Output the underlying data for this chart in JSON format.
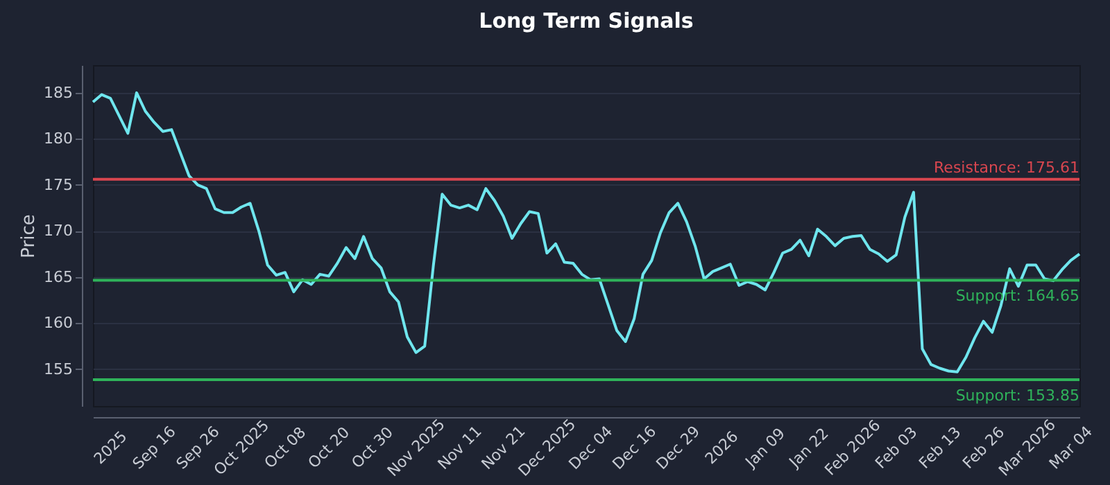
{
  "chart_data": {
    "type": "line",
    "title": "Long Term Signals",
    "ylabel": "Price",
    "categories": [
      null,
      null,
      "2025",
      null,
      null,
      null,
      null,
      "Sep 16",
      null,
      null,
      null,
      null,
      "Sep 26",
      null,
      null,
      null,
      null,
      "Oct 2025",
      null,
      null,
      null,
      null,
      "Oct 08",
      null,
      null,
      null,
      null,
      "Oct 20",
      null,
      null,
      null,
      null,
      "Oct 30",
      null,
      null,
      null,
      null,
      "Nov 2025",
      null,
      null,
      null,
      null,
      "Nov 11",
      null,
      null,
      null,
      null,
      "Nov 21",
      null,
      null,
      null,
      null,
      "Dec 2025",
      null,
      null,
      null,
      null,
      "Dec 04",
      null,
      null,
      null,
      null,
      "Dec 16",
      null,
      null,
      null,
      null,
      "Dec 29",
      null,
      null,
      null,
      null,
      "2026",
      null,
      null,
      null,
      null,
      "Jan 09",
      null,
      null,
      null,
      null,
      "Jan 22",
      null,
      null,
      null,
      null,
      "Feb 2026",
      null,
      null,
      null,
      null,
      "Feb 03",
      null,
      null,
      null,
      null,
      "Feb 13",
      null,
      null,
      null,
      null,
      "Feb 26",
      null,
      null,
      null,
      null,
      "Mar 2026",
      null,
      null,
      null,
      null,
      "Mar 04",
      null
    ],
    "series": [
      {
        "color": "#6fe6ee",
        "values": [
          184.0,
          184.8,
          184.4,
          182.5,
          180.6,
          185.0,
          183.0,
          181.8,
          180.8,
          181.0,
          178.5,
          176.0,
          175.0,
          174.6,
          172.4,
          172.0,
          172.0,
          172.6,
          173.0,
          170.0,
          166.3,
          165.2,
          165.5,
          163.4,
          164.7,
          164.2,
          165.3,
          165.1,
          166.5,
          168.2,
          167.0,
          169.4,
          167.0,
          166.0,
          163.4,
          162.3,
          158.5,
          156.8,
          157.5,
          166.3,
          174.0,
          172.8,
          172.5,
          172.8,
          172.3,
          174.6,
          173.3,
          171.6,
          169.2,
          170.8,
          172.1,
          171.9,
          167.6,
          168.6,
          166.6,
          166.5,
          165.3,
          164.7,
          164.8,
          162.0,
          159.2,
          158.0,
          160.5,
          165.3,
          166.8,
          169.8,
          172.0,
          173.0,
          171.0,
          168.3,
          164.8,
          165.6,
          166.0,
          166.4,
          164.1,
          164.5,
          164.2,
          163.6,
          165.5,
          167.6,
          168.0,
          169.0,
          167.3,
          170.2,
          169.4,
          168.4,
          169.2,
          169.4,
          169.5,
          168.0,
          167.5,
          166.7,
          167.4,
          171.5,
          174.2,
          157.2,
          155.5,
          155.1,
          154.8,
          154.7,
          156.3,
          158.4,
          160.2,
          159.0,
          161.9,
          165.9,
          164.0,
          166.3,
          166.3,
          164.8,
          164.6,
          165.8,
          166.8,
          167.5
        ]
      }
    ],
    "ylim": [
      151,
      188
    ],
    "yticks": [
      155,
      160,
      165,
      170,
      175,
      180,
      185
    ],
    "grid": "y",
    "ref_lines": [
      {
        "axis": "y",
        "value": 175.61,
        "label": "Resistance: 175.61",
        "color": "#d9464f"
      },
      {
        "axis": "y",
        "value": 164.65,
        "label": "Support: 164.65",
        "color": "#2fb35a"
      },
      {
        "axis": "y",
        "value": 153.85,
        "label": "Support: 153.85",
        "color": "#2fb35a"
      }
    ]
  }
}
